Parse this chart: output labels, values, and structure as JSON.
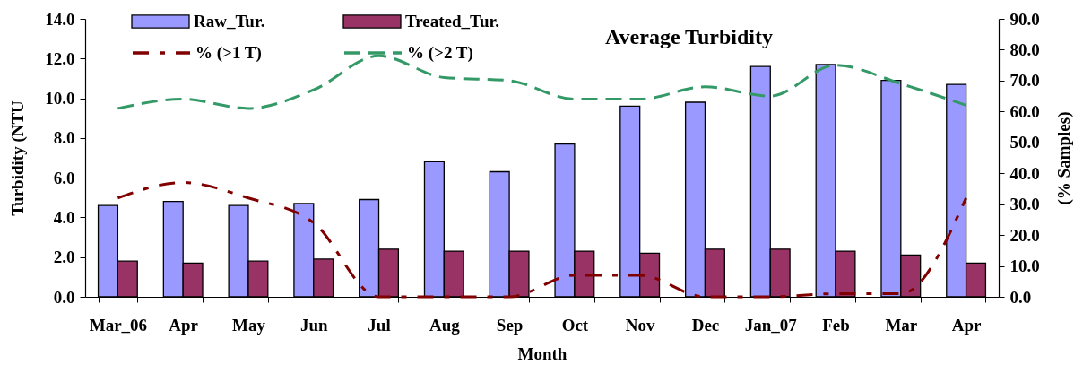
{
  "chart_data": {
    "type": "bar",
    "title": "Average Turbidity",
    "xlabel": "Month",
    "ylabel": "Turbidity (NTU",
    "y2label": "(% Samples)",
    "categories": [
      "Mar_06",
      "Apr",
      "May",
      "Jun",
      "Jul",
      "Aug",
      "Sep",
      "Oct",
      "Nov",
      "Dec",
      "Jan_07",
      "Feb",
      "Mar",
      "Apr"
    ],
    "series": [
      {
        "name": "Raw_Tur.",
        "color": "#9999ff",
        "values": [
          4.6,
          4.8,
          4.6,
          4.7,
          4.9,
          6.8,
          6.3,
          7.7,
          9.6,
          9.8,
          11.6,
          11.7,
          10.9,
          10.7
        ]
      },
      {
        "name": "Treated_Tur.",
        "color": "#993366",
        "values": [
          1.8,
          1.7,
          1.8,
          1.9,
          2.4,
          2.3,
          2.3,
          2.3,
          2.2,
          2.4,
          2.4,
          2.3,
          2.1,
          1.7
        ]
      },
      {
        "name": "% (>1 T)",
        "type": "line",
        "axis": "y2",
        "color": "#800000",
        "line_style": "dashdot",
        "values": [
          32,
          37,
          32,
          24,
          0,
          0,
          0,
          7,
          7,
          0,
          0,
          1,
          1,
          32
        ]
      },
      {
        "name": "% (>2 T)",
        "type": "line",
        "axis": "y2",
        "color": "#339966",
        "line_style": "dashed",
        "values": [
          61,
          64,
          61,
          67,
          78,
          71,
          70,
          64,
          64,
          68,
          65,
          75,
          69,
          62
        ]
      }
    ],
    "ylim": [
      0,
      14
    ],
    "yticks": [
      {
        "value": 0,
        "label": "0.0"
      },
      {
        "value": 2,
        "label": "2.0"
      },
      {
        "value": 4,
        "label": "4.0"
      },
      {
        "value": 6,
        "label": "6.0"
      },
      {
        "value": 8,
        "label": "8.0"
      },
      {
        "value": 10,
        "label": "10.0"
      },
      {
        "value": 12,
        "label": "12.0"
      },
      {
        "value": 14,
        "label": "14.0"
      }
    ],
    "y2lim": [
      0,
      90
    ],
    "y2ticks": [
      {
        "value": 0,
        "label": "0.0"
      },
      {
        "value": 10,
        "label": "10.0"
      },
      {
        "value": 20,
        "label": "20.0"
      },
      {
        "value": 30,
        "label": "30.0"
      },
      {
        "value": 40,
        "label": "40.0"
      },
      {
        "value": 50,
        "label": "50.0"
      },
      {
        "value": 60,
        "label": "60.0"
      },
      {
        "value": 70,
        "label": "70.0"
      },
      {
        "value": 80,
        "label": "80.0"
      },
      {
        "value": 90,
        "label": "90.0"
      }
    ],
    "legend": "top left"
  }
}
